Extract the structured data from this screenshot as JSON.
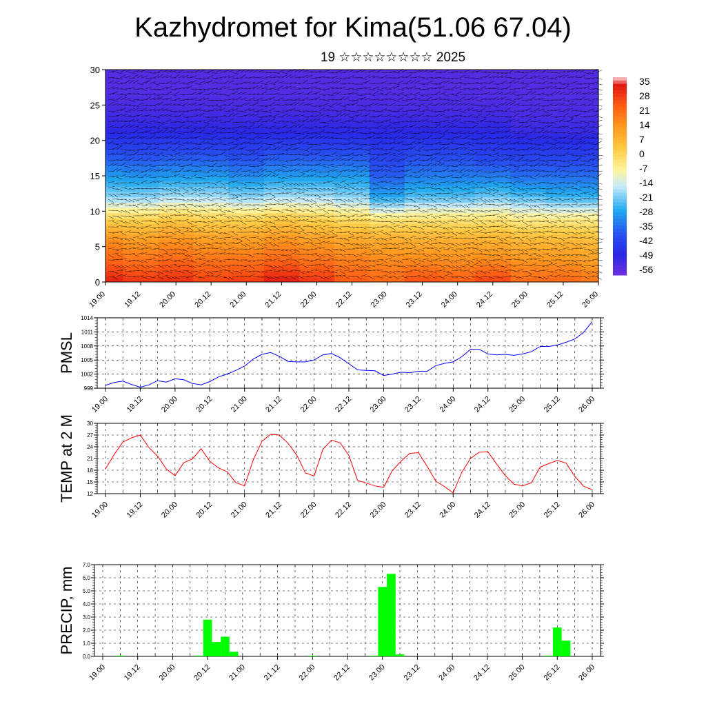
{
  "page": {
    "title": "Kazhydromet for Kima(51.06 67.04)",
    "subtitle": "19 ☆☆☆☆☆☆☆☆ 2025"
  },
  "colors": {
    "pmsl_line": "#0000ff",
    "temp_line": "#ff0000",
    "precip_bar": "#00ff00",
    "wind_barb": "#000000",
    "grid": "#000000"
  },
  "chart_data": [
    {
      "type": "heatmap",
      "name": "temperature-cross-section",
      "x_tick_labels": [
        "19.00",
        "19.12",
        "20.00",
        "20.12",
        "21.00",
        "21.12",
        "22.00",
        "22.12",
        "23.00",
        "23.12",
        "24.00",
        "24.12",
        "25.00",
        "25.12",
        "26.00"
      ],
      "y_tick_labels": [
        "0",
        "5",
        "10",
        "15",
        "20",
        "25",
        "30"
      ],
      "ylim": [
        0,
        30
      ],
      "colorbar_labels": [
        "35",
        "28",
        "21",
        "14",
        "7",
        "0",
        "-7",
        "-14",
        "-21",
        "-28",
        "-35",
        "-42",
        "-49",
        "-56"
      ],
      "colorbar_range": [
        -60,
        38
      ],
      "levels_km": [
        0,
        3,
        6,
        9,
        12,
        15,
        18,
        21,
        24,
        27,
        30
      ],
      "times": [
        "19.00",
        "19.12",
        "20.00",
        "20.12",
        "21.00",
        "21.12",
        "22.00",
        "22.12",
        "23.00",
        "23.12",
        "24.00",
        "24.12",
        "25.00",
        "25.12",
        "26.00"
      ],
      "values": [
        [
          33,
          22,
          15,
          0,
          -20,
          -30,
          -40,
          -50,
          -54,
          -56,
          -56
        ],
        [
          30,
          20,
          12,
          0,
          -20,
          -31,
          -41,
          -50,
          -54,
          -56,
          -56
        ],
        [
          31,
          22,
          14,
          2,
          -18,
          -30,
          -40,
          -50,
          -54,
          -56,
          -56
        ],
        [
          28,
          20,
          12,
          0,
          -18,
          -30,
          -40,
          -50,
          -54,
          -56,
          -56
        ],
        [
          29,
          20,
          12,
          0,
          -20,
          -32,
          -42,
          -50,
          -54,
          -56,
          -56
        ],
        [
          34,
          22,
          14,
          2,
          -18,
          -30,
          -40,
          -50,
          -54,
          -56,
          -56
        ],
        [
          30,
          20,
          12,
          0,
          -18,
          -30,
          -40,
          -50,
          -54,
          -56,
          -56
        ],
        [
          24,
          18,
          10,
          -2,
          -20,
          -30,
          -40,
          -50,
          -54,
          -56,
          -56
        ],
        [
          22,
          16,
          9,
          -5,
          -28,
          -38,
          -44,
          -50,
          -54,
          -56,
          -56
        ],
        [
          26,
          16,
          8,
          -4,
          -24,
          -34,
          -42,
          -50,
          -54,
          -56,
          -56
        ],
        [
          24,
          15,
          8,
          -4,
          -24,
          -34,
          -42,
          -50,
          -54,
          -56,
          -56
        ],
        [
          28,
          16,
          8,
          -4,
          -22,
          -34,
          -44,
          -50,
          -54,
          -56,
          -56
        ],
        [
          22,
          14,
          6,
          -6,
          -24,
          -36,
          -44,
          -52,
          -55,
          -56,
          -56
        ],
        [
          22,
          14,
          6,
          -6,
          -26,
          -36,
          -44,
          -52,
          -55,
          -56,
          -56
        ],
        [
          20,
          12,
          5,
          -6,
          -26,
          -36,
          -44,
          -52,
          -55,
          -56,
          -56
        ]
      ]
    },
    {
      "type": "line",
      "name": "pmsl",
      "ylabel": "PMSL",
      "y_tick_labels": [
        "999",
        "1002",
        "1005",
        "1008",
        "1011",
        "1014"
      ],
      "ylim": [
        999,
        1014
      ],
      "x_tick_labels": [
        "19.00",
        "19.12",
        "20.00",
        "20.12",
        "21.00",
        "21.12",
        "22.00",
        "22.12",
        "23.00",
        "23.12",
        "24.00",
        "24.12",
        "25.00",
        "25.12",
        "26.00"
      ],
      "x_hours": [
        0,
        3,
        6,
        9,
        12,
        15,
        18,
        21,
        24,
        27,
        30,
        33,
        36,
        39,
        42,
        45,
        48,
        51,
        54,
        57,
        60,
        63,
        66,
        69,
        72,
        75,
        78,
        81,
        84,
        87,
        90,
        93,
        96,
        99,
        102,
        105,
        108,
        111,
        114,
        117,
        120,
        123,
        126,
        129,
        132,
        135,
        138,
        141,
        144,
        147,
        150,
        153,
        156,
        159,
        162,
        165,
        168
      ],
      "values": [
        999.6,
        1000.2,
        1000.5,
        999.8,
        999.2,
        999.7,
        1000.6,
        1000.3,
        1001.0,
        1000.8,
        1000.0,
        999.7,
        1000.4,
        1001.4,
        1002.0,
        1002.8,
        1003.7,
        1005.2,
        1006.2,
        1006.6,
        1005.8,
        1004.7,
        1004.6,
        1004.6,
        1005.0,
        1006.1,
        1006.4,
        1005.5,
        1004.2,
        1002.9,
        1002.8,
        1002.7,
        1001.7,
        1002.0,
        1002.4,
        1002.3,
        1002.6,
        1002.6,
        1003.8,
        1004.3,
        1004.6,
        1005.7,
        1007.3,
        1007.3,
        1006.3,
        1006.1,
        1006.2,
        1006.0,
        1006.3,
        1006.8,
        1007.9,
        1007.9,
        1008.2,
        1008.8,
        1009.5,
        1010.9,
        1013.2
      ]
    },
    {
      "type": "line",
      "name": "temp-2m",
      "ylabel": "TEMP at 2 M",
      "y_tick_labels": [
        "12",
        "15",
        "18",
        "21",
        "24",
        "27",
        "30"
      ],
      "ylim": [
        12,
        30
      ],
      "x_tick_labels": [
        "19.00",
        "19.12",
        "20.00",
        "20.12",
        "21.00",
        "21.12",
        "22.00",
        "22.12",
        "23.00",
        "23.12",
        "24.00",
        "24.12",
        "25.00",
        "25.12",
        "26.00"
      ],
      "x_hours": [
        0,
        3,
        6,
        9,
        12,
        15,
        18,
        21,
        24,
        27,
        30,
        33,
        36,
        39,
        42,
        45,
        48,
        51,
        54,
        57,
        60,
        63,
        66,
        69,
        72,
        75,
        78,
        81,
        84,
        87,
        90,
        93,
        96,
        99,
        102,
        105,
        108,
        111,
        114,
        117,
        120,
        123,
        126,
        129,
        132,
        135,
        138,
        141,
        144,
        147,
        150,
        153,
        156,
        159,
        162,
        165,
        168
      ],
      "values": [
        18.3,
        22.0,
        25.2,
        26.3,
        27.0,
        23.8,
        21.6,
        18.3,
        16.6,
        19.9,
        20.9,
        23.5,
        20.3,
        18.6,
        17.6,
        14.8,
        14.0,
        20.6,
        25.4,
        27.2,
        27.0,
        24.9,
        21.9,
        17.3,
        16.5,
        23.3,
        25.7,
        25.0,
        21.8,
        15.4,
        14.7,
        14.0,
        13.6,
        17.9,
        20.3,
        22.3,
        22.5,
        19.0,
        15.2,
        13.8,
        12.2,
        17.5,
        21.0,
        22.6,
        22.7,
        19.6,
        16.6,
        14.4,
        14.0,
        14.8,
        18.8,
        19.7,
        20.5,
        19.8,
        16.4,
        13.9,
        13.0
      ]
    },
    {
      "type": "bar",
      "name": "precip",
      "ylabel": "PRECIP, mm",
      "y_tick_labels": [
        "0.0",
        "1.0",
        "2.0",
        "3.0",
        "4.0",
        "5.0",
        "6.0",
        "7.0"
      ],
      "ylim": [
        0,
        7
      ],
      "x_tick_labels": [
        "19.00",
        "19.12",
        "20.00",
        "20.12",
        "21.00",
        "21.12",
        "22.00",
        "22.12",
        "23.00",
        "23.12",
        "24.00",
        "24.12",
        "25.00",
        "25.12",
        "26.00"
      ],
      "x_hours": [
        0,
        3,
        6,
        9,
        12,
        15,
        18,
        21,
        24,
        27,
        30,
        33,
        36,
        39,
        42,
        45,
        48,
        51,
        54,
        57,
        60,
        63,
        66,
        69,
        72,
        75,
        78,
        81,
        84,
        87,
        90,
        93,
        96,
        99,
        102,
        105,
        108,
        111,
        114,
        117,
        120,
        123,
        126,
        129,
        132,
        135,
        138,
        141,
        144,
        147,
        150,
        153,
        156,
        159,
        162,
        165,
        168
      ],
      "values": [
        0,
        0,
        0.05,
        0,
        0,
        0,
        0,
        0,
        0,
        0,
        0,
        0.05,
        2.8,
        1.1,
        1.5,
        0.35,
        0,
        0,
        0,
        0,
        0,
        0,
        0,
        0,
        0.05,
        0,
        0,
        0,
        0,
        0,
        0,
        0.05,
        5.3,
        6.3,
        0.15,
        0,
        0,
        0,
        0,
        0,
        0,
        0,
        0,
        0,
        0,
        0,
        0,
        0,
        0,
        0,
        0,
        0.05,
        2.2,
        1.2,
        0,
        0,
        0
      ]
    }
  ]
}
